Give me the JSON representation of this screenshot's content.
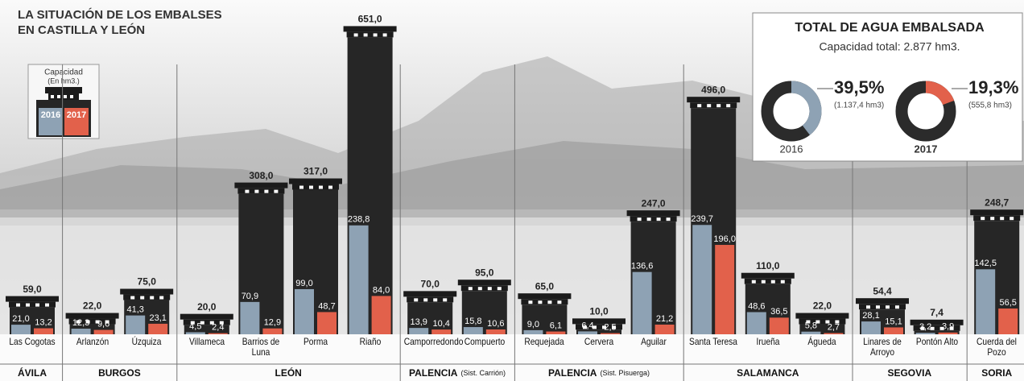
{
  "chart_data": [
    {
      "type": "bar",
      "title": [
        "LA SITUACIÓN DE LOS EMBALSES",
        "EN CASTILLA Y LEÓN"
      ],
      "unit": "(En hm3.)",
      "categories": [
        "Las Cogotas",
        "Arlanzón",
        "Úzquiza",
        "Villameca",
        "Barrios de Luna",
        "Porma",
        "Riaño",
        "Camporredondo",
        "Compuerto",
        "Requejada",
        "Cervera",
        "Aguilar",
        "Santa Teresa",
        "Irueña",
        "Águeda",
        "Linares de Arroyo",
        "Pontón Alto",
        "Cuerda del Pozo"
      ],
      "series": [
        {
          "name": "Capacidad",
          "color": "#262626",
          "values": [
            59,
            22,
            75,
            20,
            308,
            317,
            651,
            70,
            95,
            65,
            10,
            247,
            496,
            110,
            22,
            54.4,
            7.4,
            248.7
          ],
          "value_labels": [
            "59,0",
            "22,0",
            "75,0",
            "20,0",
            "308,0",
            "317,0",
            "651,0",
            "70,0",
            "95,0",
            "65,0",
            "10,0",
            "247,0",
            "496,0",
            "110,0",
            "22,0",
            "54,4",
            "7,4",
            "248,7"
          ]
        },
        {
          "name": "2016",
          "color": "#8ea2b4",
          "values": [
            21,
            12.3,
            41.3,
            4.5,
            70.9,
            99,
            238.8,
            13.9,
            15.8,
            9,
            6.4,
            136.6,
            239.7,
            48.6,
            5.8,
            28.1,
            3.2,
            142.5
          ],
          "value_labels": [
            "21,0",
            "12,3",
            "41,3",
            "4,5",
            "70,9",
            "99,0",
            "238,8",
            "13,9",
            "15,8",
            "9,0",
            "6,4",
            "136,6",
            "239,7",
            "48,6",
            "5,8",
            "28,1",
            "3,2",
            "142,5"
          ]
        },
        {
          "name": "2017",
          "color": "#e2614b",
          "values": [
            13.2,
            9.6,
            23.1,
            2.4,
            12.9,
            48.7,
            84,
            10.4,
            10.6,
            6.1,
            2.5,
            21.2,
            196,
            36.5,
            2.7,
            15.1,
            3.9,
            56.5
          ],
          "value_labels": [
            "13,2",
            "9,6",
            "23,1",
            "2,4",
            "12,9",
            "48,7",
            "84,0",
            "10,4",
            "10,6",
            "6,1",
            "2,5",
            "21,2",
            "196,0",
            "36,5",
            "2,7",
            "15,1",
            "3,9",
            "56,5"
          ]
        }
      ],
      "groups": [
        {
          "name": "ÁVILA",
          "categories": [
            "Las Cogotas"
          ]
        },
        {
          "name": "BURGOS",
          "categories": [
            "Arlanzón",
            "Úzquiza"
          ]
        },
        {
          "name": "LEÓN",
          "categories": [
            "Villameca",
            "Barrios de Luna",
            "Porma",
            "Riaño"
          ]
        },
        {
          "name": "PALENCIA",
          "sub": "(Sist. Carrión)",
          "categories": [
            "Camporredondo",
            "Compuerto"
          ]
        },
        {
          "name": "PALENCIA",
          "sub": "(Sist. Pisuerga)",
          "categories": [
            "Requejada",
            "Cervera",
            "Aguilar"
          ]
        },
        {
          "name": "SALAMANCA",
          "categories": [
            "Santa Teresa",
            "Irueña",
            "Águeda"
          ]
        },
        {
          "name": "SEGOVIA",
          "categories": [
            "Linares de Arroyo",
            "Pontón Alto"
          ]
        },
        {
          "name": "SORIA",
          "categories": [
            "Cuerda del Pozo"
          ]
        }
      ],
      "ylim": [
        0,
        680
      ]
    },
    {
      "type": "pie",
      "donut": true,
      "title": "TOTAL DE AGUA EMBALSADA",
      "subtitle": "Capacidad total: 2.877 hm3.",
      "categories": [
        "2016",
        "2017"
      ],
      "values": [
        39.5,
        19.3
      ],
      "value_labels": [
        "39,5%",
        "19,3%"
      ],
      "annotations": [
        "(1.137,4 hm3)",
        "(555,8 hm3)"
      ],
      "colors": [
        "#8ea2b4",
        "#e2614b"
      ],
      "rest_color": "#2b2b2b"
    }
  ]
}
